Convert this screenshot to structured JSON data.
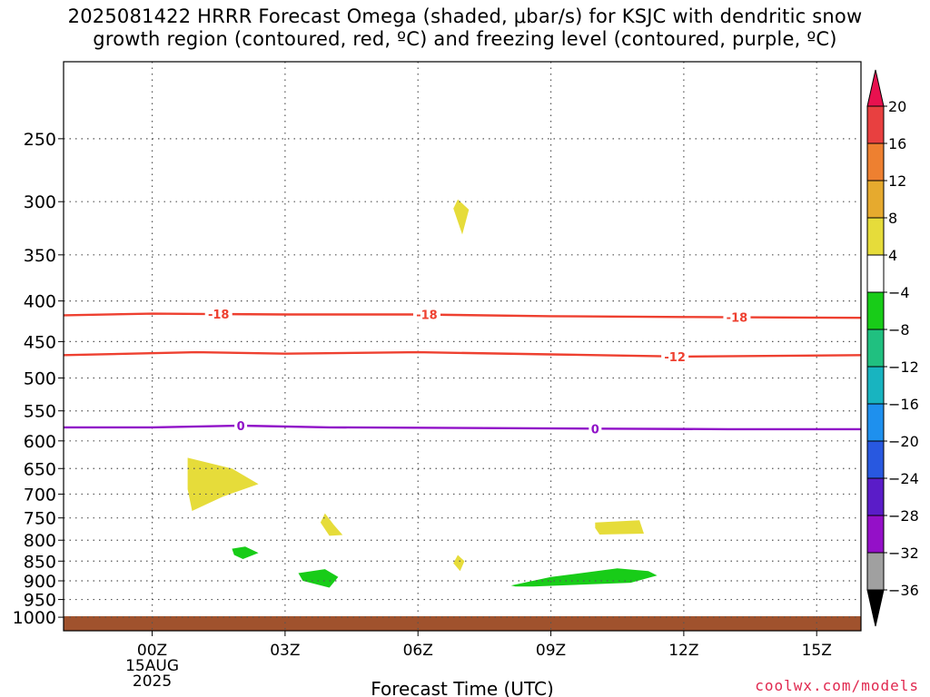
{
  "title_line1": "2025081422 HRRR Forecast Omega (shaded, μbar/s) for KSJC with dendritic snow",
  "title_line2": "growth region (contoured, red, ºC) and freezing level (contoured, purple, ºC)",
  "credit": "coolwx.com/models",
  "chart_data": {
    "type": "time-height-contour",
    "xlabel": "Forecast Time (UTC)",
    "x_ticks": [
      {
        "hour": 0,
        "label": "00Z",
        "sub1": "15AUG",
        "sub2": "2025"
      },
      {
        "hour": 3,
        "label": "03Z"
      },
      {
        "hour": 6,
        "label": "06Z"
      },
      {
        "hour": 9,
        "label": "09Z"
      },
      {
        "hour": 12,
        "label": "12Z"
      },
      {
        "hour": 15,
        "label": "15Z"
      }
    ],
    "xlim_hours": [
      -2,
      16
    ],
    "y_scale": "log-pressure",
    "ylim_hpa": [
      1040,
      200
    ],
    "y_ticks": [
      250,
      300,
      350,
      400,
      450,
      500,
      550,
      600,
      650,
      700,
      750,
      800,
      850,
      900,
      950,
      1000
    ],
    "grid": true,
    "surface_color": "#a0522d",
    "colorbar": {
      "levels": [
        "20",
        "16",
        "12",
        "8",
        "4",
        "−4",
        "−8",
        "−12",
        "−16",
        "−20",
        "−24",
        "−28",
        "−32",
        "−36"
      ],
      "colors": [
        "#e8114f",
        "#e84040",
        "#ee8030",
        "#e6aa2e",
        "#e6dc3a",
        "#ffffff",
        "#18cc18",
        "#20c080",
        "#18b4c0",
        "#1e90ee",
        "#2858e0",
        "#5a1cc8",
        "#9410c8",
        "#a0a0a0",
        "#000000"
      ]
    },
    "contours": [
      {
        "label": "-18",
        "color": "#ee4030",
        "points": [
          [
            -2,
            417
          ],
          [
            0,
            415
          ],
          [
            3,
            416
          ],
          [
            6,
            416
          ],
          [
            9,
            418
          ],
          [
            12,
            419
          ],
          [
            16,
            420
          ]
        ],
        "label_hours": [
          1.5,
          6.2,
          13.2
        ]
      },
      {
        "label": "-12",
        "color": "#ee4030",
        "points": [
          [
            -2,
            468
          ],
          [
            1,
            464
          ],
          [
            3,
            466
          ],
          [
            6,
            464
          ],
          [
            9,
            467
          ],
          [
            12,
            470
          ],
          [
            16,
            468
          ]
        ],
        "label_hours": [
          11.8
        ]
      },
      {
        "label": "0",
        "color": "#9010c8",
        "points": [
          [
            -2,
            577
          ],
          [
            0,
            577
          ],
          [
            2,
            574
          ],
          [
            4,
            577
          ],
          [
            7,
            578
          ],
          [
            10,
            579
          ],
          [
            13,
            580
          ],
          [
            16,
            580
          ]
        ],
        "label_hours": [
          2,
          10
        ]
      }
    ],
    "omega_regions": [
      {
        "value": 4,
        "color": "#e6dc3a",
        "points": [
          [
            6.9,
            298
          ],
          [
            7.15,
            307
          ],
          [
            7,
            330
          ],
          [
            6.8,
            306
          ]
        ]
      },
      {
        "value": 4,
        "color": "#e6dc3a",
        "points": [
          [
            0.8,
            630
          ],
          [
            1.8,
            650
          ],
          [
            2.4,
            680
          ],
          [
            1.6,
            705
          ],
          [
            0.9,
            735
          ],
          [
            0.8,
            690
          ]
        ]
      },
      {
        "value": 4,
        "color": "#e6dc3a",
        "points": [
          [
            3.9,
            740
          ],
          [
            4.1,
            765
          ],
          [
            4.3,
            788
          ],
          [
            4.0,
            790
          ],
          [
            3.8,
            760
          ]
        ]
      },
      {
        "value": 4,
        "color": "#e6dc3a",
        "points": [
          [
            10,
            760
          ],
          [
            11,
            755
          ],
          [
            11.1,
            785
          ],
          [
            10.1,
            787
          ],
          [
            10,
            772
          ]
        ]
      },
      {
        "value": 4,
        "color": "#e6dc3a",
        "points": [
          [
            6.9,
            835
          ],
          [
            7.05,
            850
          ],
          [
            6.95,
            875
          ],
          [
            6.8,
            855
          ]
        ]
      },
      {
        "value": -4,
        "color": "#18cc18",
        "points": [
          [
            1.8,
            820
          ],
          [
            2.1,
            815
          ],
          [
            2.4,
            830
          ],
          [
            2.05,
            845
          ],
          [
            1.85,
            835
          ]
        ]
      },
      {
        "value": -4,
        "color": "#18cc18",
        "points": [
          [
            3.3,
            880
          ],
          [
            3.9,
            870
          ],
          [
            4.2,
            890
          ],
          [
            4.0,
            918
          ],
          [
            3.4,
            900
          ]
        ]
      },
      {
        "value": -4,
        "color": "#18cc18",
        "points": [
          [
            8.1,
            912
          ],
          [
            9,
            890
          ],
          [
            10.5,
            868
          ],
          [
            11.2,
            875
          ],
          [
            11.4,
            886
          ],
          [
            10.8,
            905
          ],
          [
            8.6,
            915
          ],
          [
            8.2,
            915
          ]
        ]
      }
    ]
  }
}
